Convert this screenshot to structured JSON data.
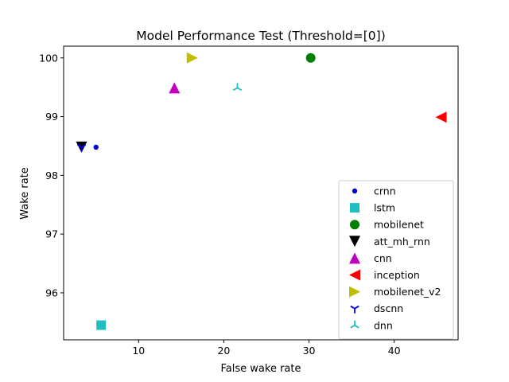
{
  "chart_data": {
    "type": "scatter",
    "title": "Model Performance Test (Threshold=[0])",
    "xlabel": "False wake rate",
    "ylabel": "Wake rate",
    "xlim": [
      1.2,
      47.5
    ],
    "ylim": [
      95.2,
      100.2
    ],
    "x_ticks": [
      10,
      20,
      30,
      40
    ],
    "y_ticks": [
      96,
      97,
      98,
      99,
      100
    ],
    "grid": false,
    "legend_position": "lower-right",
    "series": [
      {
        "name": "crnn",
        "marker": "dot",
        "color": "#0000cc",
        "points": [
          {
            "x": 5.0,
            "y": 98.48
          }
        ]
      },
      {
        "name": "lstm",
        "marker": "square",
        "color": "#1fbfbf",
        "points": [
          {
            "x": 5.6,
            "y": 95.45
          }
        ]
      },
      {
        "name": "mobilenet",
        "marker": "circle",
        "color": "#008000",
        "points": [
          {
            "x": 30.2,
            "y": 100.0
          }
        ]
      },
      {
        "name": "att_mh_rnn",
        "marker": "triangle-down",
        "color": "#000000",
        "points": [
          {
            "x": 3.3,
            "y": 98.48
          }
        ]
      },
      {
        "name": "cnn",
        "marker": "triangle-up",
        "color": "#bf00bf",
        "points": [
          {
            "x": 14.2,
            "y": 99.49
          }
        ]
      },
      {
        "name": "inception",
        "marker": "triangle-left",
        "color": "#ff0000",
        "points": [
          {
            "x": 45.5,
            "y": 98.99
          }
        ]
      },
      {
        "name": "mobilenet_v2",
        "marker": "triangle-right",
        "color": "#bfbf00",
        "points": [
          {
            "x": 16.3,
            "y": 100.0
          }
        ]
      },
      {
        "name": "dscnn",
        "marker": "tri-down",
        "color": "#0000ff",
        "points": [
          {
            "x": 3.3,
            "y": 98.48
          }
        ]
      },
      {
        "name": "dnn",
        "marker": "tri-up",
        "color": "#1fbfbf",
        "points": [
          {
            "x": 21.6,
            "y": 99.49
          }
        ]
      }
    ]
  }
}
